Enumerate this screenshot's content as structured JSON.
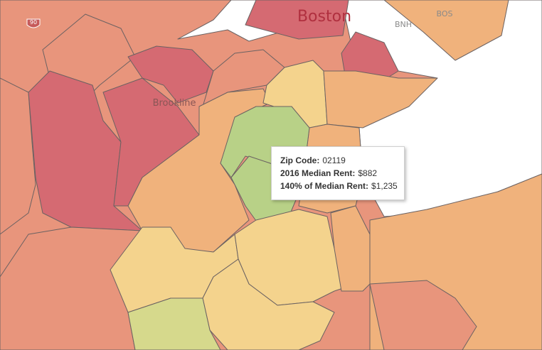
{
  "map": {
    "labels": {
      "city": "Boston",
      "neighborhood": "Brookline",
      "airport_codes": [
        "BNH",
        "BOS"
      ],
      "highway": "90"
    }
  },
  "tooltip": {
    "rows": [
      {
        "label": "Zip Code:",
        "value": "02119"
      },
      {
        "label": "2016 Median Rent:",
        "value": "$882"
      },
      {
        "label": "140% of Median Rent:",
        "value": "$1,235"
      }
    ]
  }
}
